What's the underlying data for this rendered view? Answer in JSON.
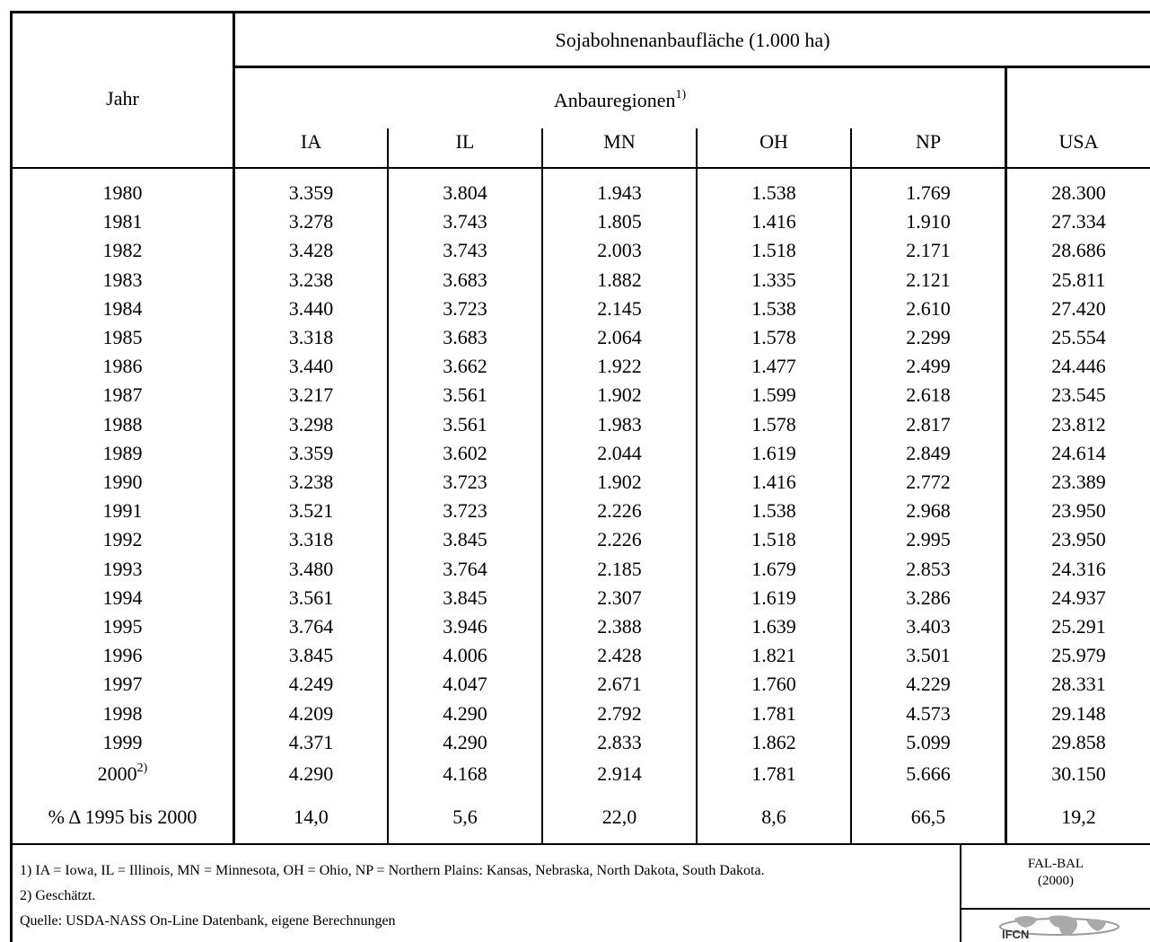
{
  "header": {
    "title": "Sojabohnenanbaufläche (1.000 ha)",
    "year_label": "Jahr",
    "regions_label": "Anbauregionen",
    "regions_note": "1)",
    "columns": [
      "IA",
      "IL",
      "MN",
      "OH",
      "NP",
      "USA"
    ]
  },
  "table": {
    "rows": [
      [
        "1980",
        "3.359",
        "3.804",
        "1.943",
        "1.538",
        "1.769",
        "28.300"
      ],
      [
        "1981",
        "3.278",
        "3.743",
        "1.805",
        "1.416",
        "1.910",
        "27.334"
      ],
      [
        "1982",
        "3.428",
        "3.743",
        "2.003",
        "1.518",
        "2.171",
        "28.686"
      ],
      [
        "1983",
        "3.238",
        "3.683",
        "1.882",
        "1.335",
        "2.121",
        "25.811"
      ],
      [
        "1984",
        "3.440",
        "3.723",
        "2.145",
        "1.538",
        "2.610",
        "27.420"
      ],
      [
        "1985",
        "3.318",
        "3.683",
        "2.064",
        "1.578",
        "2.299",
        "25.554"
      ],
      [
        "1986",
        "3.440",
        "3.662",
        "1.922",
        "1.477",
        "2.499",
        "24.446"
      ],
      [
        "1987",
        "3.217",
        "3.561",
        "1.902",
        "1.599",
        "2.618",
        "23.545"
      ],
      [
        "1988",
        "3.298",
        "3.561",
        "1.983",
        "1.578",
        "2.817",
        "23.812"
      ],
      [
        "1989",
        "3.359",
        "3.602",
        "2.044",
        "1.619",
        "2.849",
        "24.614"
      ],
      [
        "1990",
        "3.238",
        "3.723",
        "1.902",
        "1.416",
        "2.772",
        "23.389"
      ],
      [
        "1991",
        "3.521",
        "3.723",
        "2.226",
        "1.538",
        "2.968",
        "23.950"
      ],
      [
        "1992",
        "3.318",
        "3.845",
        "2.226",
        "1.518",
        "2.995",
        "23.950"
      ],
      [
        "1993",
        "3.480",
        "3.764",
        "2.185",
        "1.679",
        "2.853",
        "24.316"
      ],
      [
        "1994",
        "3.561",
        "3.845",
        "2.307",
        "1.619",
        "3.286",
        "24.937"
      ],
      [
        "1995",
        "3.764",
        "3.946",
        "2.388",
        "1.639",
        "3.403",
        "25.291"
      ],
      [
        "1996",
        "3.845",
        "4.006",
        "2.428",
        "1.821",
        "3.501",
        "25.979"
      ],
      [
        "1997",
        "4.249",
        "4.047",
        "2.671",
        "1.760",
        "4.229",
        "28.331"
      ],
      [
        "1998",
        "4.209",
        "4.290",
        "2.792",
        "1.781",
        "4.573",
        "29.148"
      ],
      [
        "1999",
        "4.371",
        "4.290",
        "2.833",
        "1.862",
        "5.099",
        "29.858"
      ]
    ],
    "last_row": {
      "year": "2000",
      "note": "2)",
      "values": [
        "4.290",
        "4.168",
        "2.914",
        "1.781",
        "5.666",
        "30.150"
      ]
    },
    "change_row": {
      "label": "% Δ 1995 bis 2000",
      "values": [
        "14,0",
        "5,6",
        "22,0",
        "8,6",
        "66,5",
        "19,2"
      ]
    }
  },
  "footer": {
    "notes": [
      "1) IA  = Iowa, IL = Illinois, MN = Minnesota, OH = Ohio, NP = Northern Plains: Kansas, Nebraska, North Dakota, South Dakota.",
      "2) Geschätzt.",
      "Quelle: USDA-NASS On-Line Datenbank, eigene Berechnungen"
    ],
    "source": "FAL-BAL",
    "source_year": "(2000)",
    "logo": "IFCN"
  }
}
